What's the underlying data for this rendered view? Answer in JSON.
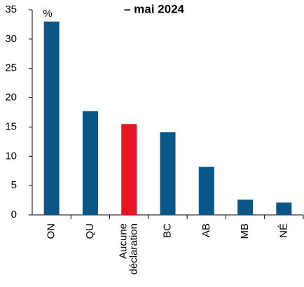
{
  "chart_data": {
    "type": "bar",
    "title": "– mai 2024",
    "ylabel": "%",
    "categories": [
      "ON",
      "QU",
      "Aucune déclaration",
      "BC",
      "AB",
      "MB",
      "NÉ"
    ],
    "values": [
      33,
      17.7,
      15.5,
      14.1,
      8.2,
      2.6,
      2.1
    ],
    "colors": [
      "#0a5687",
      "#0a5687",
      "#e8141f",
      "#0a5687",
      "#0a5687",
      "#0a5687",
      "#0a5687"
    ],
    "ylim": [
      0,
      35
    ],
    "yticks": [
      0,
      5,
      10,
      15,
      20,
      25,
      30,
      35
    ],
    "grid": false
  }
}
